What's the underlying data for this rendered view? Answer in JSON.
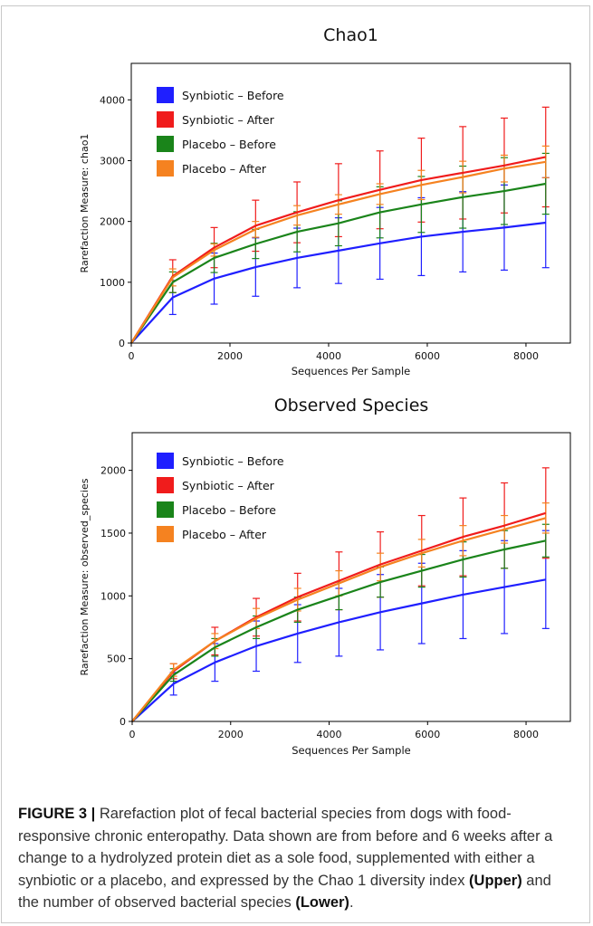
{
  "colors": {
    "synbiotic_before": "#1f1fff",
    "synbiotic_after": "#f01c1c",
    "placebo_before": "#1a841a",
    "placebo_after": "#f58220"
  },
  "chart_data": [
    {
      "type": "line",
      "title": "Chao1",
      "xlabel": "Sequences Per Sample",
      "ylabel": "Rarefaction Measure: chao1",
      "xlim": [
        0,
        8900
      ],
      "ylim": [
        0,
        4600
      ],
      "xticks": [
        0,
        2000,
        4000,
        6000,
        8000
      ],
      "yticks": [
        0,
        1000,
        2000,
        3000,
        4000
      ],
      "legend": "top-left",
      "grid": false,
      "x": [
        0,
        840,
        1680,
        2520,
        3360,
        4200,
        5040,
        5880,
        6720,
        7560,
        8400
      ],
      "series": [
        {
          "name": "Synbiotic – Before",
          "color": "#1f1fff",
          "values": [
            0,
            750,
            1060,
            1250,
            1400,
            1520,
            1640,
            1750,
            1830,
            1900,
            1980
          ],
          "error": [
            0,
            280,
            420,
            480,
            490,
            540,
            590,
            640,
            660,
            700,
            740
          ]
        },
        {
          "name": "Synbiotic – After",
          "color": "#f01c1c",
          "values": [
            0,
            1100,
            1570,
            1930,
            2150,
            2350,
            2520,
            2680,
            2800,
            2920,
            3060
          ],
          "error": [
            0,
            270,
            330,
            420,
            500,
            600,
            640,
            690,
            760,
            780,
            820
          ]
        },
        {
          "name": "Placebo – Before",
          "color": "#1a841a",
          "values": [
            0,
            1000,
            1400,
            1630,
            1830,
            1970,
            2150,
            2280,
            2400,
            2500,
            2620
          ],
          "error": [
            0,
            170,
            240,
            240,
            330,
            370,
            420,
            460,
            510,
            550,
            500
          ]
        },
        {
          "name": "Placebo – After",
          "color": "#f58220",
          "values": [
            0,
            1080,
            1530,
            1870,
            2100,
            2280,
            2450,
            2600,
            2730,
            2870,
            2980
          ],
          "error": [
            0,
            140,
            100,
            130,
            160,
            160,
            170,
            240,
            260,
            220,
            260
          ]
        }
      ]
    },
    {
      "type": "line",
      "title": "Observed Species",
      "xlabel": "Sequences Per Sample",
      "ylabel": "Rarefaction Measure: observed_species",
      "xlim": [
        0,
        8900
      ],
      "ylim": [
        0,
        2300
      ],
      "xticks": [
        0,
        2000,
        4000,
        6000,
        8000
      ],
      "yticks": [
        0,
        500,
        1000,
        1500,
        2000
      ],
      "legend": "top-left",
      "grid": false,
      "x": [
        0,
        840,
        1680,
        2520,
        3360,
        4200,
        5040,
        5880,
        6720,
        7560,
        8400
      ],
      "series": [
        {
          "name": "Synbiotic – Before",
          "color": "#1f1fff",
          "values": [
            0,
            300,
            470,
            600,
            700,
            790,
            870,
            940,
            1010,
            1070,
            1130
          ],
          "error": [
            0,
            90,
            150,
            200,
            230,
            270,
            300,
            320,
            350,
            370,
            390
          ]
        },
        {
          "name": "Synbiotic – After",
          "color": "#f01c1c",
          "values": [
            0,
            400,
            640,
            830,
            990,
            1120,
            1250,
            1360,
            1470,
            1560,
            1660
          ],
          "error": [
            0,
            60,
            110,
            150,
            190,
            230,
            260,
            280,
            310,
            340,
            360
          ]
        },
        {
          "name": "Placebo – Before",
          "color": "#1a841a",
          "values": [
            0,
            370,
            590,
            750,
            890,
            1000,
            1110,
            1200,
            1290,
            1370,
            1440
          ],
          "error": [
            0,
            50,
            70,
            90,
            100,
            110,
            120,
            130,
            140,
            150,
            130
          ]
        },
        {
          "name": "Placebo – After",
          "color": "#f58220",
          "values": [
            0,
            410,
            640,
            820,
            970,
            1100,
            1230,
            1340,
            1440,
            1530,
            1620
          ],
          "error": [
            0,
            50,
            60,
            80,
            90,
            100,
            110,
            110,
            120,
            110,
            120
          ]
        }
      ]
    }
  ],
  "caption": {
    "label": "FIGURE 3 |",
    "text_1": " Rarefaction plot of fecal bacterial species from dogs with food-responsive chronic enteropathy. Data shown are from before and 6 weeks after a change to a hydrolyzed protein diet as a sole food, supplemented with either a synbiotic or a placebo, and expressed by the Chao 1 diversity index ",
    "upper": "(Upper)",
    "text_2": " and the number of observed bacterial species ",
    "lower": "(Lower)",
    "text_3": "."
  }
}
